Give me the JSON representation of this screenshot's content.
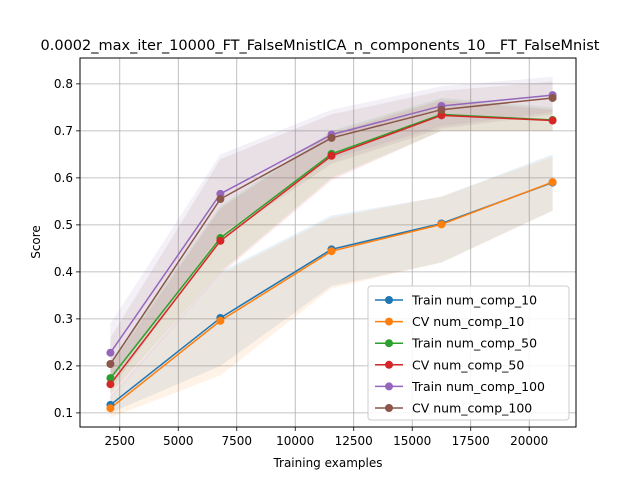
{
  "chart_data": {
    "type": "line",
    "title": "0.0002_max_iter_10000_FT_FalseMnistICA_n_components_10__FT_FalseMnist",
    "xlabel": "Training examples",
    "ylabel": "Score",
    "xlim": [
      800,
      22000
    ],
    "ylim": [
      0.07,
      0.855
    ],
    "xticks": [
      2500,
      5000,
      7500,
      10000,
      12500,
      15000,
      17500,
      20000
    ],
    "yticks": [
      0.1,
      0.2,
      0.3,
      0.4,
      0.5,
      0.6,
      0.7,
      0.8
    ],
    "grid": true,
    "legend_position": "lower-right",
    "x": [
      2100,
      6800,
      11550,
      16250,
      21000
    ],
    "series": [
      {
        "name": "Train num_comp_10",
        "color": "#1f77b4",
        "values": [
          0.117,
          0.302,
          0.448,
          0.503,
          0.59
        ],
        "band_lo": [
          0.1,
          0.2,
          0.37,
          0.42,
          0.53
        ],
        "band_hi": [
          0.135,
          0.4,
          0.52,
          0.56,
          0.65
        ]
      },
      {
        "name": "CV num_comp_10",
        "color": "#ff7f0e",
        "values": [
          0.11,
          0.296,
          0.444,
          0.501,
          0.591
        ],
        "band_lo": [
          0.09,
          0.18,
          0.365,
          0.42,
          0.53
        ],
        "band_hi": [
          0.13,
          0.395,
          0.515,
          0.56,
          0.645
        ]
      },
      {
        "name": "Train num_comp_50",
        "color": "#2ca02c",
        "values": [
          0.174,
          0.472,
          0.651,
          0.735,
          0.723
        ],
        "band_lo": [
          0.14,
          0.4,
          0.6,
          0.7,
          0.7
        ],
        "band_hi": [
          0.21,
          0.54,
          0.7,
          0.77,
          0.75
        ]
      },
      {
        "name": "CV num_comp_50",
        "color": "#d62728",
        "values": [
          0.161,
          0.466,
          0.647,
          0.733,
          0.722
        ],
        "band_lo": [
          0.13,
          0.395,
          0.595,
          0.7,
          0.7
        ],
        "band_hi": [
          0.2,
          0.535,
          0.695,
          0.765,
          0.745
        ]
      },
      {
        "name": "Train num_comp_100",
        "color": "#9467bd",
        "values": [
          0.228,
          0.566,
          0.692,
          0.753,
          0.776
        ],
        "band_lo": [
          0.17,
          0.48,
          0.64,
          0.71,
          0.74
        ],
        "band_hi": [
          0.29,
          0.65,
          0.745,
          0.795,
          0.815
        ]
      },
      {
        "name": "CV num_comp_100",
        "color": "#8c564b",
        "values": [
          0.204,
          0.555,
          0.685,
          0.745,
          0.77
        ],
        "band_lo": [
          0.15,
          0.47,
          0.63,
          0.705,
          0.735
        ],
        "band_hi": [
          0.26,
          0.64,
          0.735,
          0.785,
          0.805
        ]
      }
    ]
  }
}
